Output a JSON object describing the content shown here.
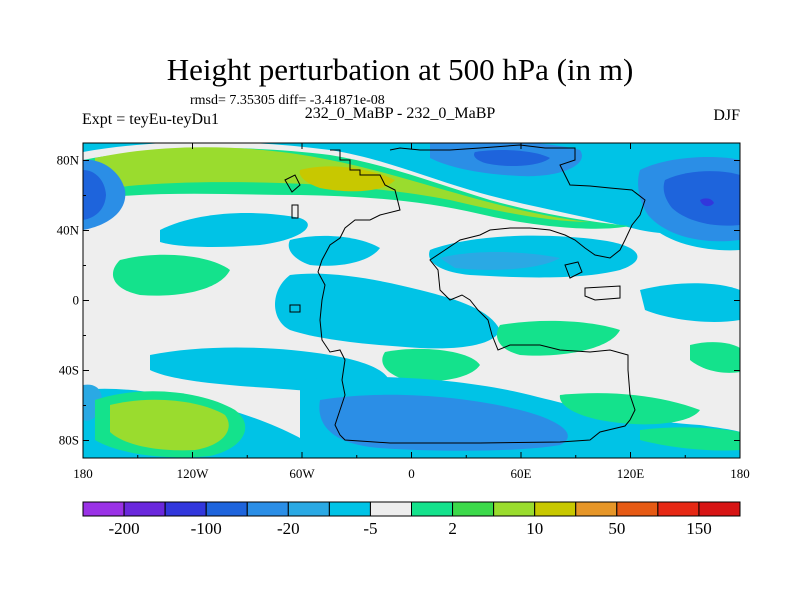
{
  "title": "Height perturbation at 500 hPa (in m)",
  "stats_text": "rmsd= 7.35305 diff= -3.41871e-08",
  "left_label": "Expt = teyEu-teyDu1",
  "center_label": "232_0_MaBP - 232_0_MaBP",
  "right_label": "DJF",
  "lat_ticks": [
    "80N",
    "40N",
    "0",
    "40S",
    "80S"
  ],
  "lon_ticks": [
    "180",
    "120W",
    "60W",
    "0",
    "60E",
    "120E",
    "180"
  ],
  "colorbar": {
    "colors": [
      "#9a32e6",
      "#6a28dc",
      "#3237dc",
      "#1e64dc",
      "#2b8ee6",
      "#2aa9e4",
      "#00c3e6",
      "#eeeeee",
      "#14e28c",
      "#3cd94a",
      "#9adc2e",
      "#c8c800",
      "#e69628",
      "#e65a14",
      "#e62814",
      "#d71414"
    ],
    "tick_labels": [
      "-200",
      "-100",
      "-20",
      "-5",
      "2",
      "10",
      "50",
      "150"
    ]
  },
  "colors": {
    "background": "#eeeeee",
    "light_blue": "#00c3e6",
    "mid_blue": "#2aa9e4",
    "blue": "#2b8ee6",
    "dark_blue": "#1e64dc",
    "deep_blue": "#3237dc",
    "green": "#14e28c",
    "yellow_green": "#9adc2e",
    "olive": "#c8c800",
    "orange": "#e69628"
  }
}
